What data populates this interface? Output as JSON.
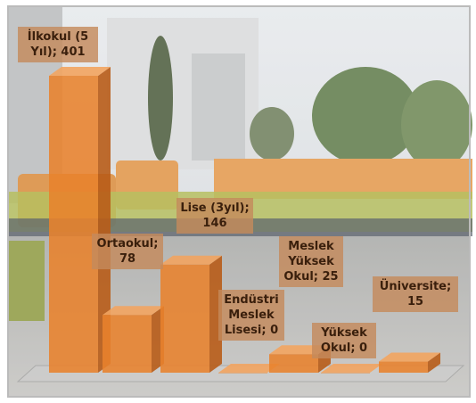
{
  "chart_data": {
    "type": "bar3d",
    "values": [
      401,
      78,
      146,
      0,
      25,
      0,
      15
    ],
    "value_labels": [
      "İlkokul (5 Yıl); 401",
      "Ortaokul; 78",
      "Lise (3yıl); 146",
      "Endüstri Meslek Lisesi; 0",
      "Meslek Yüksek Okul; 25",
      "Yüksek Okul; 0",
      "Üniversite; 15"
    ],
    "color": "#e8822c"
  }
}
